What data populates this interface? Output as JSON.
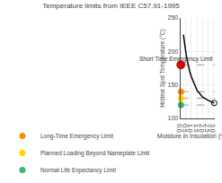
{
  "chart_data": {
    "type": "line",
    "title": "Temperature limits from IEEE C57.91-1995",
    "x_label": "Moisture in Insulation (%  wt)",
    "y_label": "Hottest Spot Temperature (°C)",
    "x": [
      0.28,
      0.35,
      0.45,
      0.55,
      0.65,
      0.75,
      0.85,
      1.0,
      1.2,
      1.5,
      2.0,
      2.5,
      3.05
    ],
    "values": [
      225,
      215,
      203,
      193,
      185,
      177,
      170,
      162,
      153,
      142,
      132,
      127,
      123
    ],
    "color": "#000000",
    "xlim": [
      0.0,
      3.1
    ],
    "ylim": [
      100,
      250
    ],
    "xticks": [
      {
        "value": 0.0,
        "label": "0.0"
      },
      0.5,
      {
        "value": 1.0,
        "label": "1.0"
      },
      1.5,
      {
        "value": 2.0,
        "label": "2.0"
      },
      2.5,
      {
        "value": 3.0,
        "label": "3.0"
      }
    ],
    "yticks": [
      100,
      150,
      200,
      250
    ],
    "grid": true,
    "legend": "bottom",
    "reference_lines": [
      {
        "value": 180,
        "label": "Short Time Emergency Limit"
      },
      {
        "value": 140,
        "label": "Long-Time Emergency Limit",
        "color": "#FF8C00"
      },
      {
        "value": 130,
        "label": "Planned Loading Beyond Nameplate Limit",
        "color": "#FFD700"
      },
      {
        "value": 120,
        "label": "Normal Life Expectancy Limit",
        "color": "#3CB371"
      }
    ],
    "points": [
      {
        "x": 0.05,
        "y": 180,
        "color": "#dd0000",
        "marker": "circle"
      },
      {
        "x": 3.05,
        "y": 123,
        "color": "#000000",
        "marker": "circle-open"
      }
    ]
  }
}
